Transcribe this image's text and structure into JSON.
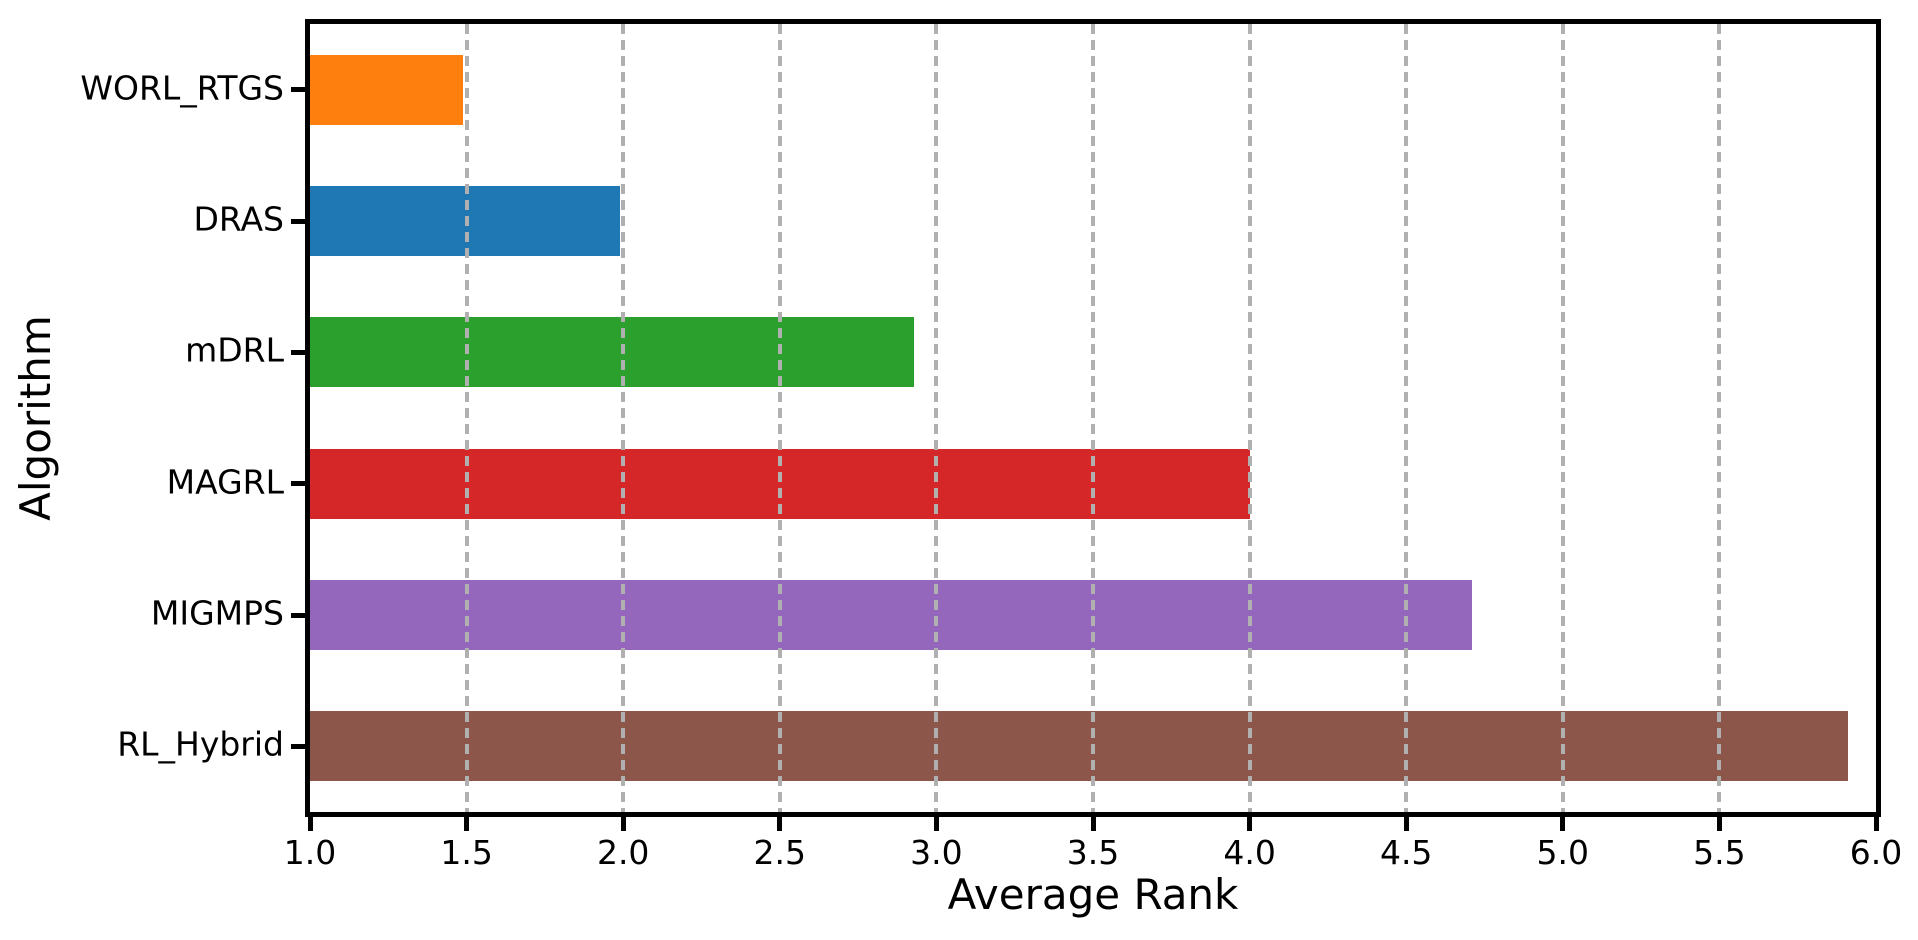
{
  "chart_data": {
    "type": "bar",
    "orientation": "horizontal",
    "title": "",
    "xlabel": "Average Rank",
    "ylabel": "Algorithm",
    "categories": [
      "WORL_RTGS",
      "DRAS",
      "mDRL",
      "MAGRL",
      "MIGMPS",
      "RL_Hybrid"
    ],
    "values": [
      1.49,
      1.99,
      2.93,
      4.0,
      4.71,
      5.91
    ],
    "bar_colors": [
      "#ff7f0e",
      "#1f77b4",
      "#2ca02c",
      "#d62728",
      "#9467bd",
      "#8c564b"
    ],
    "xlim": [
      1.0,
      6.0
    ],
    "x_tick_labels": [
      "1.0",
      "1.5",
      "2.0",
      "2.5",
      "3.0",
      "3.5",
      "4.0",
      "4.5",
      "5.0",
      "5.5",
      "6.0"
    ],
    "grid": {
      "axis": "x",
      "style": "dashed",
      "color": "#b0b0b0",
      "drawn_over_bars": true
    },
    "legend": "none",
    "spine_color": "#000000",
    "background_color": "#ffffff"
  }
}
